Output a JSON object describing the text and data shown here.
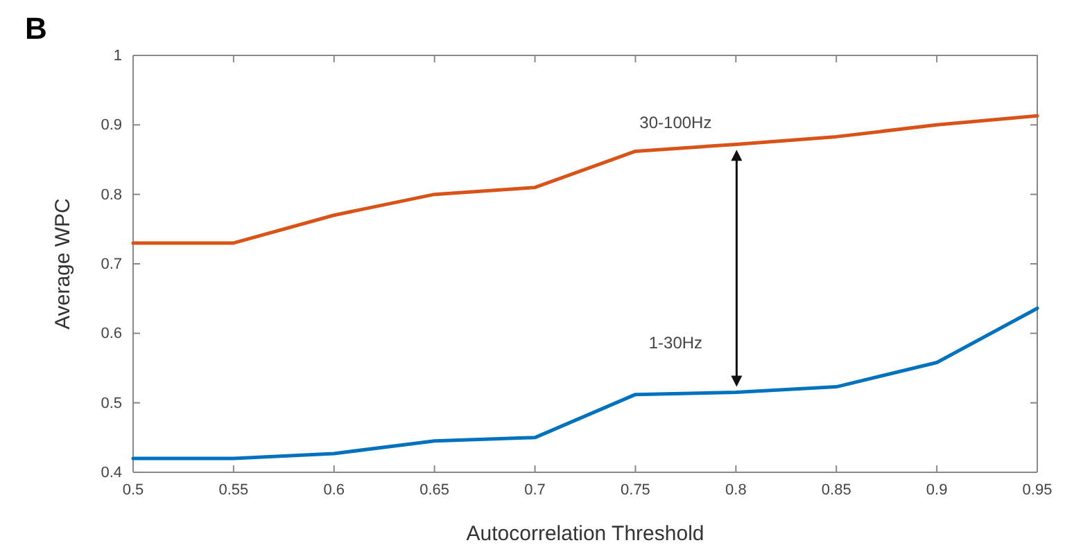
{
  "chart_data": {
    "type": "line",
    "title": "B",
    "xlabel": "Autocorrelation Threshold",
    "ylabel": "Average WPC",
    "x": [
      0.5,
      0.55,
      0.6,
      0.65,
      0.7,
      0.75,
      0.8,
      0.85,
      0.9,
      0.95
    ],
    "series": [
      {
        "name": "30-100Hz",
        "color": "#d95319",
        "values": [
          0.73,
          0.73,
          0.77,
          0.8,
          0.81,
          0.862,
          0.872,
          0.883,
          0.9,
          0.913
        ]
      },
      {
        "name": "1-30Hz",
        "color": "#0072bd",
        "values": [
          0.42,
          0.42,
          0.427,
          0.445,
          0.45,
          0.512,
          0.515,
          0.523,
          0.558,
          0.636
        ]
      }
    ],
    "xlim": [
      0.5,
      0.95
    ],
    "ylim": [
      0.4,
      1
    ],
    "xticks": [
      0.5,
      0.55,
      0.6,
      0.65,
      0.7,
      0.75,
      0.8,
      0.85,
      0.9,
      0.95
    ],
    "yticks": [
      0.4,
      0.5,
      0.6,
      0.7,
      0.8,
      0.9,
      1
    ],
    "grid": false,
    "legend": false,
    "marker": "none",
    "line_style": "solid"
  }
}
